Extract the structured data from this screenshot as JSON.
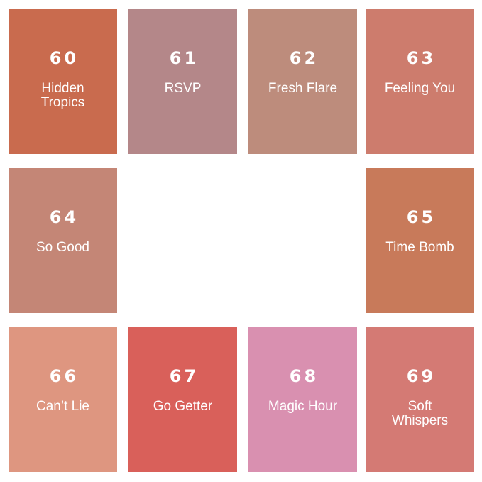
{
  "swatches": [
    {
      "number": "60",
      "name": "Hidden Tropics",
      "color": "#c96b4e"
    },
    {
      "number": "61",
      "name": "RSVP",
      "color": "#b48789"
    },
    {
      "number": "62",
      "name": "Fresh Flare",
      "color": "#bd8c7c"
    },
    {
      "number": "63",
      "name": "Feeling You",
      "color": "#cd7c6d"
    },
    {
      "number": "64",
      "name": "So Good",
      "color": "#c48676"
    },
    {
      "number": "65",
      "name": "Time Bomb",
      "color": "#c87a5a"
    },
    {
      "number": "66",
      "name": "Can’t Lie",
      "color": "#de9680"
    },
    {
      "number": "67",
      "name": "Go Getter",
      "color": "#d9605a"
    },
    {
      "number": "68",
      "name": "Magic Hour",
      "color": "#d990b0"
    },
    {
      "number": "69",
      "name": "Soft Whispers",
      "color": "#d47a74"
    }
  ]
}
